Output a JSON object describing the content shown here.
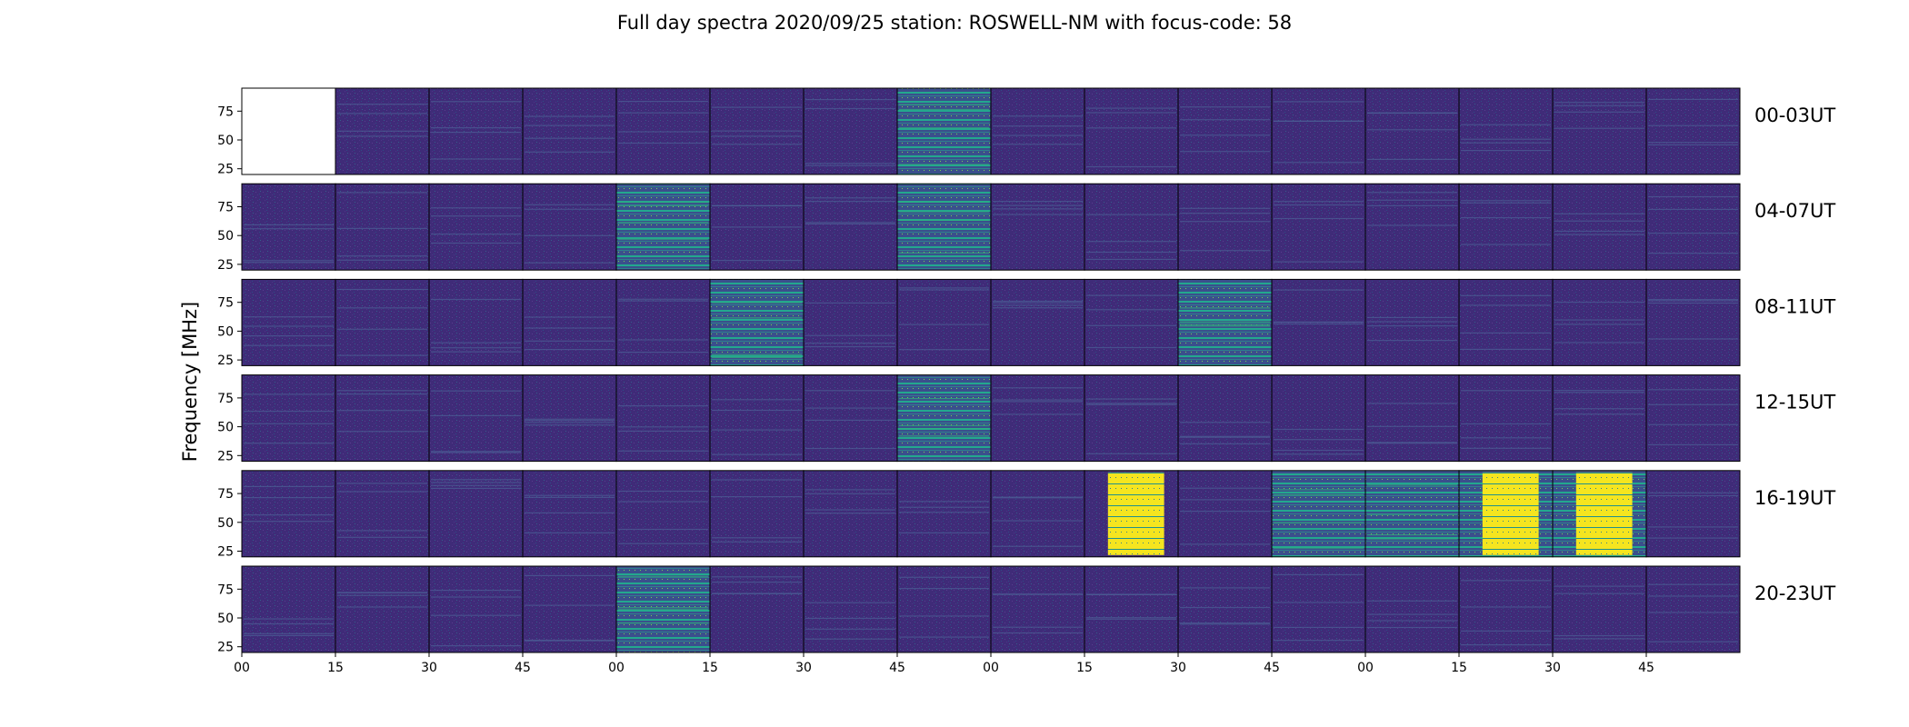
{
  "chart_data": {
    "type": "heatmap",
    "title": "Full day spectra 2020/09/25 station: ROSWELL-NM with focus-code: 58",
    "ylabel": "Frequency [MHz]",
    "xlabel": "",
    "y_ticks": [
      75,
      50,
      25
    ],
    "ylim": [
      20,
      95
    ],
    "x_tick_labels": [
      "00",
      "15",
      "30",
      "45",
      "00",
      "15",
      "30",
      "45",
      "00",
      "15",
      "30",
      "45",
      "00",
      "15",
      "30",
      "45"
    ],
    "segments_per_row": 16,
    "colormap": {
      "low": "#3f2b78",
      "mid": "#2f7f8e",
      "high": "#21918c",
      "max": "#f5e51f"
    },
    "rows": [
      {
        "label": "00-03UT",
        "no_data_segments": [
          0
        ],
        "bright_segments": [
          7
        ],
        "saturated_segments": []
      },
      {
        "label": "04-07UT",
        "no_data_segments": [],
        "bright_segments": [
          4,
          7
        ],
        "saturated_segments": []
      },
      {
        "label": "08-11UT",
        "no_data_segments": [],
        "bright_segments": [
          5,
          10
        ],
        "saturated_segments": []
      },
      {
        "label": "12-15UT",
        "no_data_segments": [],
        "bright_segments": [
          7
        ],
        "saturated_segments": []
      },
      {
        "label": "16-19UT",
        "no_data_segments": [],
        "bright_segments": [
          11,
          12,
          13,
          14
        ],
        "saturated_segments": [
          9,
          13,
          14
        ]
      },
      {
        "label": "20-23UT",
        "no_data_segments": [],
        "bright_segments": [
          4
        ],
        "saturated_segments": []
      }
    ]
  }
}
